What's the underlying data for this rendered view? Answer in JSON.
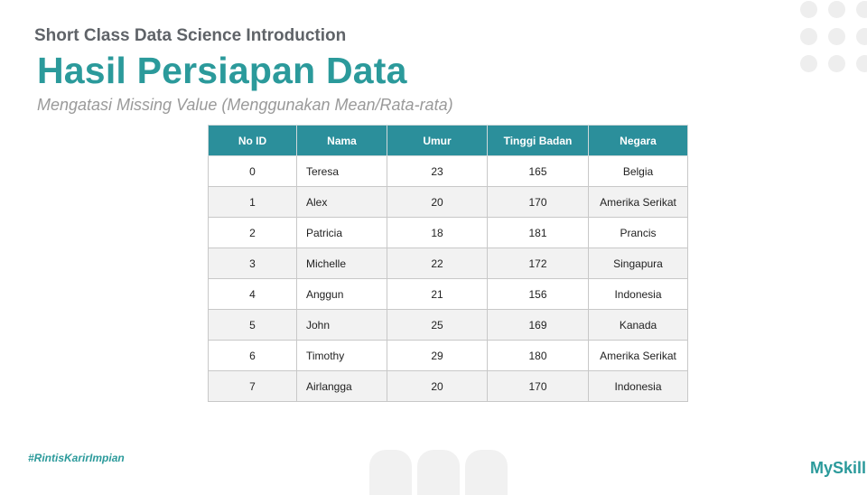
{
  "header": {
    "course": "Short Class Data Science Introduction",
    "title": "Hasil Persiapan Data",
    "subtitle": "Mengatasi Missing Value (Menggunakan Mean/Rata-rata)"
  },
  "table": {
    "columns": [
      "No ID",
      "Nama",
      "Umur",
      "Tinggi Badan",
      "Negara"
    ],
    "rows": [
      [
        "0",
        "Teresa",
        "23",
        "165",
        "Belgia"
      ],
      [
        "1",
        "Alex",
        "20",
        "170",
        "Amerika Serikat"
      ],
      [
        "2",
        "Patricia",
        "18",
        "181",
        "Prancis"
      ],
      [
        "3",
        "Michelle",
        "22",
        "172",
        "Singapura"
      ],
      [
        "4",
        "Anggun",
        "21",
        "156",
        "Indonesia"
      ],
      [
        "5",
        "John",
        "25",
        "169",
        "Kanada"
      ],
      [
        "6",
        "Timothy",
        "29",
        "180",
        "Amerika Serikat"
      ],
      [
        "7",
        "Airlangga",
        "20",
        "170",
        "Indonesia"
      ]
    ]
  },
  "footer": {
    "hashtag": "#RintisKarirImpian",
    "logo": "MySkill"
  },
  "colors": {
    "accent": "#2b9a9b",
    "header_bg": "#2b8f9b"
  }
}
